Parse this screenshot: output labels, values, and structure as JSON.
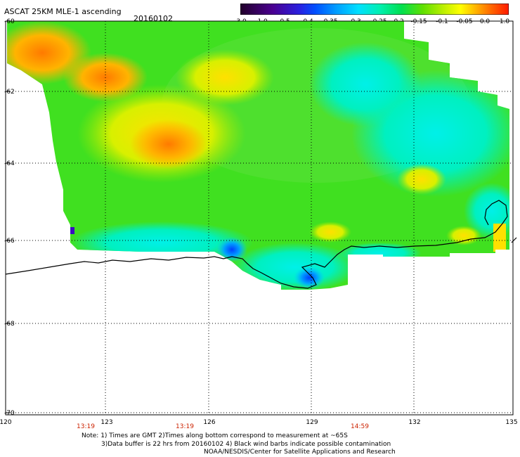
{
  "header": {
    "title": "ASCAT 25KM MLE-1 ascending",
    "date": "20160102"
  },
  "colorbar": {
    "labels": [
      "-3.0",
      "-1.0",
      "-0.5",
      "-0.4",
      "-0.35",
      "-0.3",
      "-0.25",
      "-0.2",
      "-0.15",
      "-0.1",
      "-0.05",
      "0.0",
      "1.0"
    ],
    "colors": [
      "#2a0030",
      "#4b008a",
      "#2a1ad8",
      "#0050ff",
      "#0096ff",
      "#00d2ff",
      "#00f0c8",
      "#00e060",
      "#50e000",
      "#b4f000",
      "#ffff00",
      "#ffb400",
      "#ff6400",
      "#ff1e00"
    ]
  },
  "axes": {
    "lat_labels": [
      "-60",
      "-62",
      "-64",
      "-66",
      "-68",
      "-70"
    ],
    "lon_labels": [
      "120",
      "123",
      "126",
      "129",
      "132",
      "135"
    ],
    "time_labels": [
      "13:19",
      "13:19",
      "14:59"
    ]
  },
  "notes": {
    "line1": "Note: 1) Times are GMT 2)Times along bottom correspond to measurement at ~65S",
    "line2": "3)Data buffer is 22 hrs from 20160102 4) Black wind barbs indicate possible contamination",
    "line3": "NOAA/NESDIS/Center for Satellite Applications and Research"
  }
}
